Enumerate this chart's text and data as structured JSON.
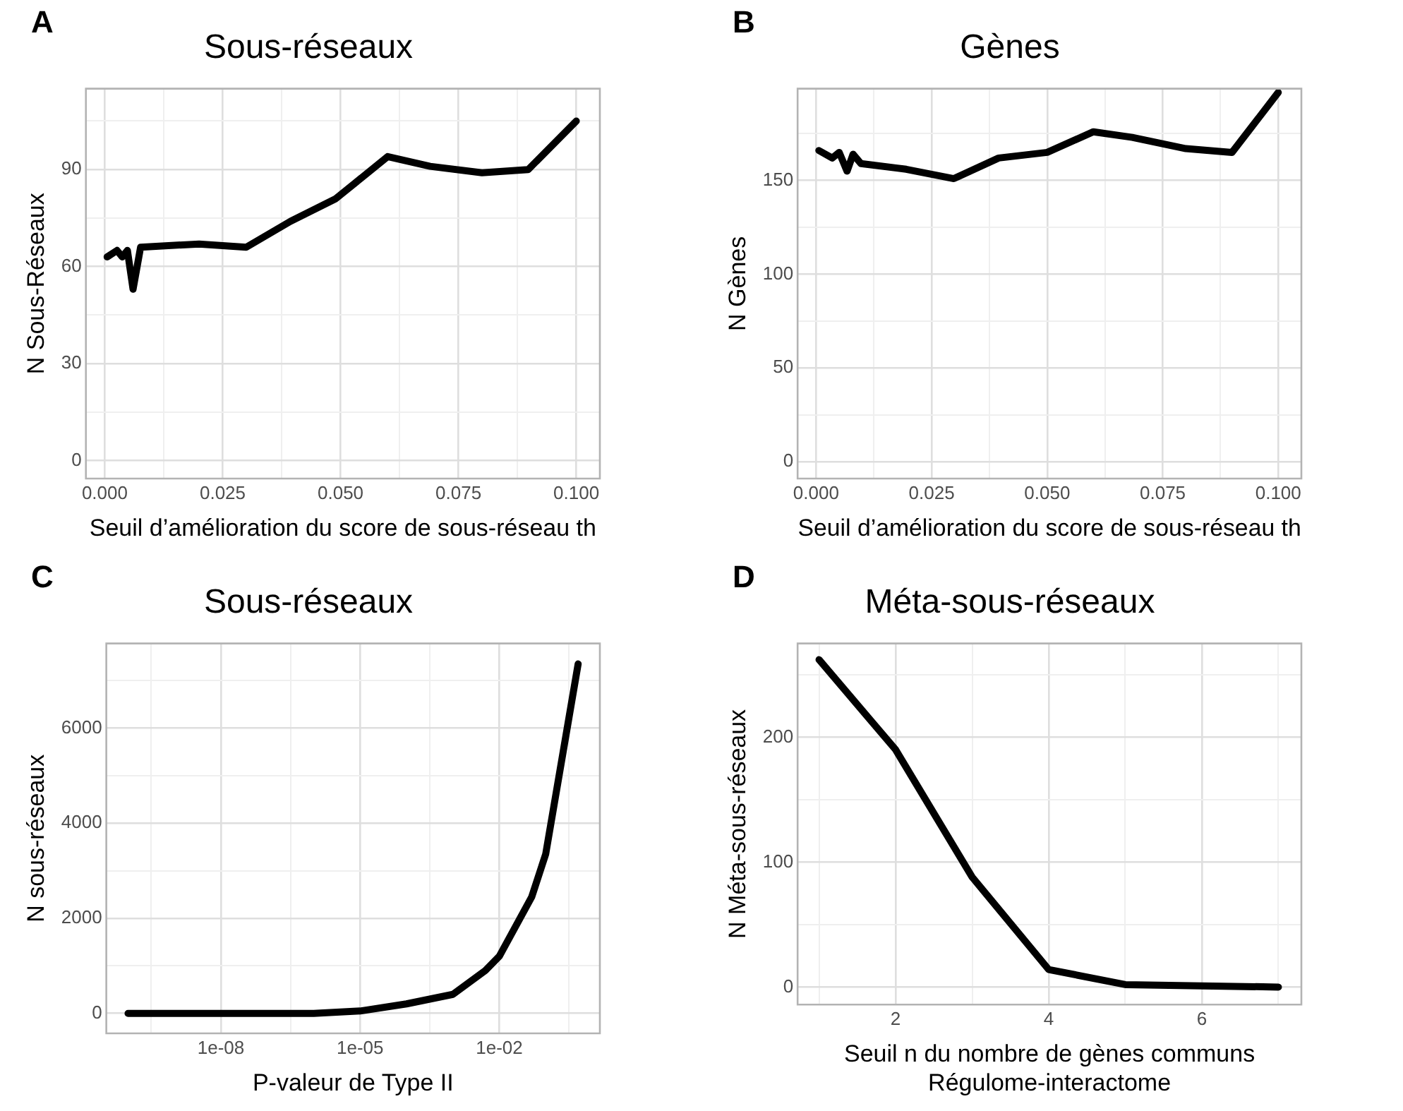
{
  "chart_data": [
    {
      "type": "line",
      "title": "Sous-réseaux",
      "xlabel": "Seuil d’amélioration du score de sous-réseau th",
      "ylabel": "N Sous-Réseaux",
      "annotations": [
        "A"
      ],
      "x": [
        0.0005,
        0.0026,
        0.0037,
        0.0048,
        0.006,
        0.0076,
        0.02,
        0.03,
        0.0394,
        0.049,
        0.06,
        0.069,
        0.08,
        0.0898,
        0.1
      ],
      "series": [
        {
          "color": "#000000",
          "values": [
            63,
            65,
            63,
            65,
            53,
            66,
            67,
            66,
            74,
            81,
            94,
            91,
            89,
            90,
            105
          ]
        }
      ],
      "xlim": [
        -0.004,
        0.105
      ],
      "ylim": [
        -5.5,
        115
      ],
      "xticks": [
        {
          "value": 0,
          "label": "0.000"
        },
        {
          "value": 0.0125,
          "label": null
        },
        {
          "value": 0.025,
          "label": "0.025"
        },
        {
          "value": 0.0375,
          "label": null
        },
        {
          "value": 0.05,
          "label": "0.050"
        },
        {
          "value": 0.0625,
          "label": null
        },
        {
          "value": 0.075,
          "label": "0.075"
        },
        {
          "value": 0.0875,
          "label": null
        },
        {
          "value": 0.1,
          "label": "0.100"
        }
      ],
      "yticks": [
        0,
        {
          "value": 15,
          "label": null
        },
        30,
        {
          "value": 45,
          "label": null
        },
        60,
        {
          "value": 75,
          "label": null
        },
        90,
        {
          "value": 105,
          "label": null
        }
      ],
      "grid": true
    },
    {
      "type": "line",
      "title": "Gènes",
      "xlabel": "Seuil d’amélioration du score de sous-réseau th",
      "ylabel": "N Gènes",
      "annotations": [
        "B"
      ],
      "x": [
        0.0006,
        0.0035,
        0.005,
        0.0067,
        0.008,
        0.0097,
        0.0195,
        0.0298,
        0.0395,
        0.05,
        0.06,
        0.0684,
        0.08,
        0.09,
        0.1
      ],
      "series": [
        {
          "color": "#000000",
          "values": [
            166,
            162,
            165,
            155,
            164,
            159,
            156,
            151,
            162,
            165,
            176,
            173,
            167,
            165,
            197
          ]
        }
      ],
      "xlim": [
        -0.004,
        0.105
      ],
      "ylim": [
        -9,
        199
      ],
      "xticks": [
        {
          "value": 0,
          "label": "0.000"
        },
        {
          "value": 0.0125,
          "label": null
        },
        {
          "value": 0.025,
          "label": "0.025"
        },
        {
          "value": 0.0375,
          "label": null
        },
        {
          "value": 0.05,
          "label": "0.050"
        },
        {
          "value": 0.0625,
          "label": null
        },
        {
          "value": 0.075,
          "label": "0.075"
        },
        {
          "value": 0.0875,
          "label": null
        },
        {
          "value": 0.1,
          "label": "0.100"
        }
      ],
      "yticks": [
        0,
        {
          "value": 25,
          "label": null
        },
        50,
        {
          "value": 75,
          "label": null
        },
        100,
        {
          "value": 125,
          "label": null
        },
        150,
        {
          "value": 175,
          "label": null
        }
      ],
      "grid": true
    },
    {
      "type": "line",
      "title": "Sous-réseaux",
      "xlabel": "P-valeur de Type II",
      "ylabel": "N sous-réseaux",
      "annotations": [
        "C"
      ],
      "x": [
        1e-10,
        1e-09,
        1e-08,
        1e-07,
        1e-06,
        1e-05,
        0.0001,
        0.001,
        0.005,
        0.01,
        0.05,
        0.1,
        0.5
      ],
      "series": [
        {
          "color": "#000000",
          "values": [
            0,
            0,
            0,
            0,
            0,
            50,
            200,
            400,
            900,
            1200,
            2450,
            3350,
            7350
          ]
        }
      ],
      "xlim": [
        3.4e-11,
        1.47
      ],
      "ylim": [
        -420,
        7780
      ],
      "log": "x",
      "xticks": [
        {
          "value": 3.16e-10,
          "label": null
        },
        {
          "value": 1e-08,
          "label": "1e-08"
        },
        {
          "value": 3.16e-07,
          "label": null
        },
        {
          "value": 1e-05,
          "label": "1e-05"
        },
        {
          "value": 0.000316,
          "label": null
        },
        {
          "value": 0.01,
          "label": "1e-02"
        },
        {
          "value": 0.316,
          "label": null
        }
      ],
      "yticks": [
        0,
        {
          "value": 1000,
          "label": null
        },
        2000,
        {
          "value": 3000,
          "label": null
        },
        4000,
        {
          "value": 5000,
          "label": null
        },
        6000,
        {
          "value": 7000,
          "label": null
        }
      ],
      "grid": true
    },
    {
      "type": "line",
      "title": "Méta-sous-réseaux",
      "xlabel": "Seuil n du nombre de gènes communs\nRégulome-interactome",
      "ylabel": "N Méta-sous-réseaux",
      "annotations": [
        "D"
      ],
      "x": [
        1,
        2,
        3,
        4,
        5,
        6,
        7
      ],
      "series": [
        {
          "color": "#000000",
          "values": [
            262,
            190,
            88,
            14,
            2,
            1,
            0
          ]
        }
      ],
      "xlim": [
        0.72,
        7.3
      ],
      "ylim": [
        -14,
        275
      ],
      "xticks": [
        {
          "value": 1,
          "label": null
        },
        2,
        {
          "value": 3,
          "label": null
        },
        4,
        {
          "value": 5,
          "label": null
        },
        6,
        {
          "value": 7,
          "label": null
        }
      ],
      "yticks": [
        0,
        {
          "value": 50,
          "label": null
        },
        100,
        {
          "value": 150,
          "label": null
        },
        200,
        {
          "value": 250,
          "label": null
        }
      ],
      "grid": true
    }
  ]
}
